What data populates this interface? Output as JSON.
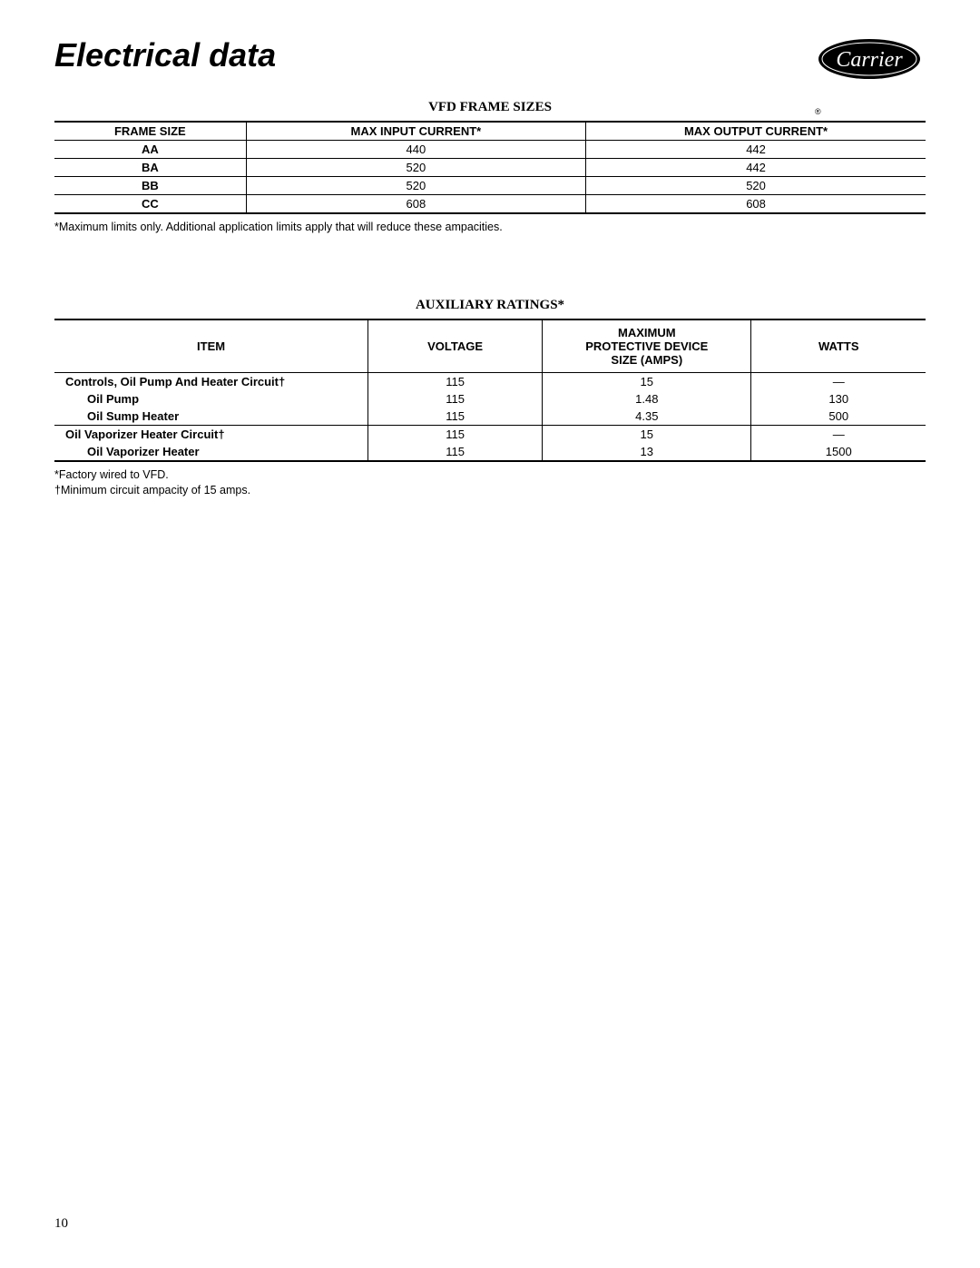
{
  "header": {
    "title": "Electrical data",
    "logo_text": "Carrier",
    "logo_bg": "#000000",
    "logo_fg": "#ffffff",
    "registered_mark": "®"
  },
  "table1": {
    "title": "VFD FRAME SIZES",
    "columns": [
      "FRAME SIZE",
      "MAX INPUT CURRENT*",
      "MAX OUTPUT CURRENT*"
    ],
    "col_widths": [
      "22%",
      "39%",
      "39%"
    ],
    "rows": [
      [
        "AA",
        "440",
        "442"
      ],
      [
        "BA",
        "520",
        "442"
      ],
      [
        "BB",
        "520",
        "520"
      ],
      [
        "CC",
        "608",
        "608"
      ]
    ],
    "footnote": "*Maximum limits only. Additional application limits apply that will reduce these ampacities."
  },
  "table2": {
    "title": "AUXILIARY RATINGS*",
    "columns": [
      "ITEM",
      "VOLTAGE",
      "MAXIMUM\nPROTECTIVE DEVICE\nSIZE (AMPS)",
      "WATTS"
    ],
    "col_widths": [
      "36%",
      "20%",
      "24%",
      "20%"
    ],
    "groups": [
      {
        "rows": [
          {
            "item": "Controls, Oil Pump And Heater Circuit†",
            "sub": false,
            "voltage": "115",
            "amps": "15",
            "watts": "—"
          },
          {
            "item": "Oil Pump",
            "sub": true,
            "voltage": "115",
            "amps": "1.48",
            "watts": "130"
          },
          {
            "item": "Oil Sump Heater",
            "sub": true,
            "voltage": "115",
            "amps": "4.35",
            "watts": "500"
          }
        ]
      },
      {
        "rows": [
          {
            "item": "Oil Vaporizer Heater Circuit†",
            "sub": false,
            "voltage": "115",
            "amps": "15",
            "watts": "—"
          },
          {
            "item": "Oil Vaporizer Heater",
            "sub": true,
            "voltage": "115",
            "amps": "13",
            "watts": "1500"
          }
        ]
      }
    ],
    "footnotes": [
      "*Factory wired to VFD.",
      "†Minimum circuit ampacity of 15 amps."
    ]
  },
  "page_number": "10"
}
